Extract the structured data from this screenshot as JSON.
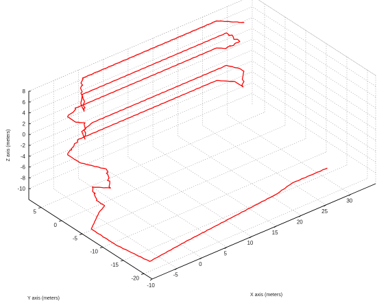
{
  "chart_data": {
    "type": "line",
    "projection": "3d",
    "title": "",
    "xlabel": "X axis (meters)",
    "ylabel": "Y axis (meters)",
    "zlabel": "Z axis (meters)",
    "xlim": [
      -10,
      35
    ],
    "ylim": [
      -22,
      8
    ],
    "zlim": [
      -12,
      8
    ],
    "xticks": [
      -10,
      -5,
      0,
      5,
      10,
      15,
      20,
      25,
      30
    ],
    "yticks": [
      -20,
      -15,
      -10,
      -5,
      0,
      5
    ],
    "zticks": [
      8,
      6,
      4,
      2,
      0,
      -2,
      -4,
      -6,
      -8,
      -10
    ],
    "grid": true,
    "line_color": "#ff0000",
    "series": [
      {
        "points": [
          [
            31,
            -15,
            -11
          ],
          [
            24,
            -15,
            -11
          ],
          [
            20,
            -16,
            -11
          ],
          [
            10,
            -17,
            -11
          ],
          [
            0,
            -18,
            -11
          ],
          [
            -8,
            -19,
            -11
          ],
          [
            -9,
            -12,
            -11
          ],
          [
            -9,
            -6,
            -11
          ],
          [
            -5,
            -3,
            -11
          ],
          [
            -3,
            -2,
            -11
          ],
          [
            -3,
            0,
            -11
          ],
          [
            -3,
            1,
            -9
          ],
          [
            -2,
            0,
            -9
          ],
          [
            -1,
            -1,
            -9
          ],
          [
            -1,
            0,
            -6
          ],
          [
            -2,
            2,
            -6
          ],
          [
            -3,
            4,
            -6
          ],
          [
            -3,
            7,
            -6
          ],
          [
            -1,
            7,
            -4
          ],
          [
            27,
            7,
            -4
          ],
          [
            28,
            6,
            -4
          ],
          [
            29,
            5,
            -4
          ],
          [
            29,
            3,
            -4
          ],
          [
            29,
            3,
            -2
          ],
          [
            30,
            4,
            -2
          ],
          [
            30,
            5,
            -2
          ],
          [
            29,
            7,
            -2
          ],
          [
            2,
            7,
            -2
          ],
          [
            -1,
            6,
            -2
          ],
          [
            -2,
            4,
            -2
          ],
          [
            -2,
            4,
            1
          ],
          [
            -3,
            5,
            1
          ],
          [
            -3,
            7,
            1
          ],
          [
            -1,
            7,
            2
          ],
          [
            27,
            7,
            2
          ],
          [
            28,
            6,
            2
          ],
          [
            29,
            5,
            3
          ],
          [
            30,
            5,
            3
          ],
          [
            29,
            7,
            4
          ],
          [
            0,
            7,
            4
          ],
          [
            -2,
            5,
            4
          ],
          [
            -3,
            3,
            4
          ],
          [
            -3,
            3,
            6
          ],
          [
            -2,
            5,
            6
          ],
          [
            0,
            7,
            7
          ],
          [
            27,
            7,
            7
          ],
          [
            29,
            5,
            7
          ],
          [
            30,
            4,
            7
          ]
        ]
      }
    ]
  }
}
